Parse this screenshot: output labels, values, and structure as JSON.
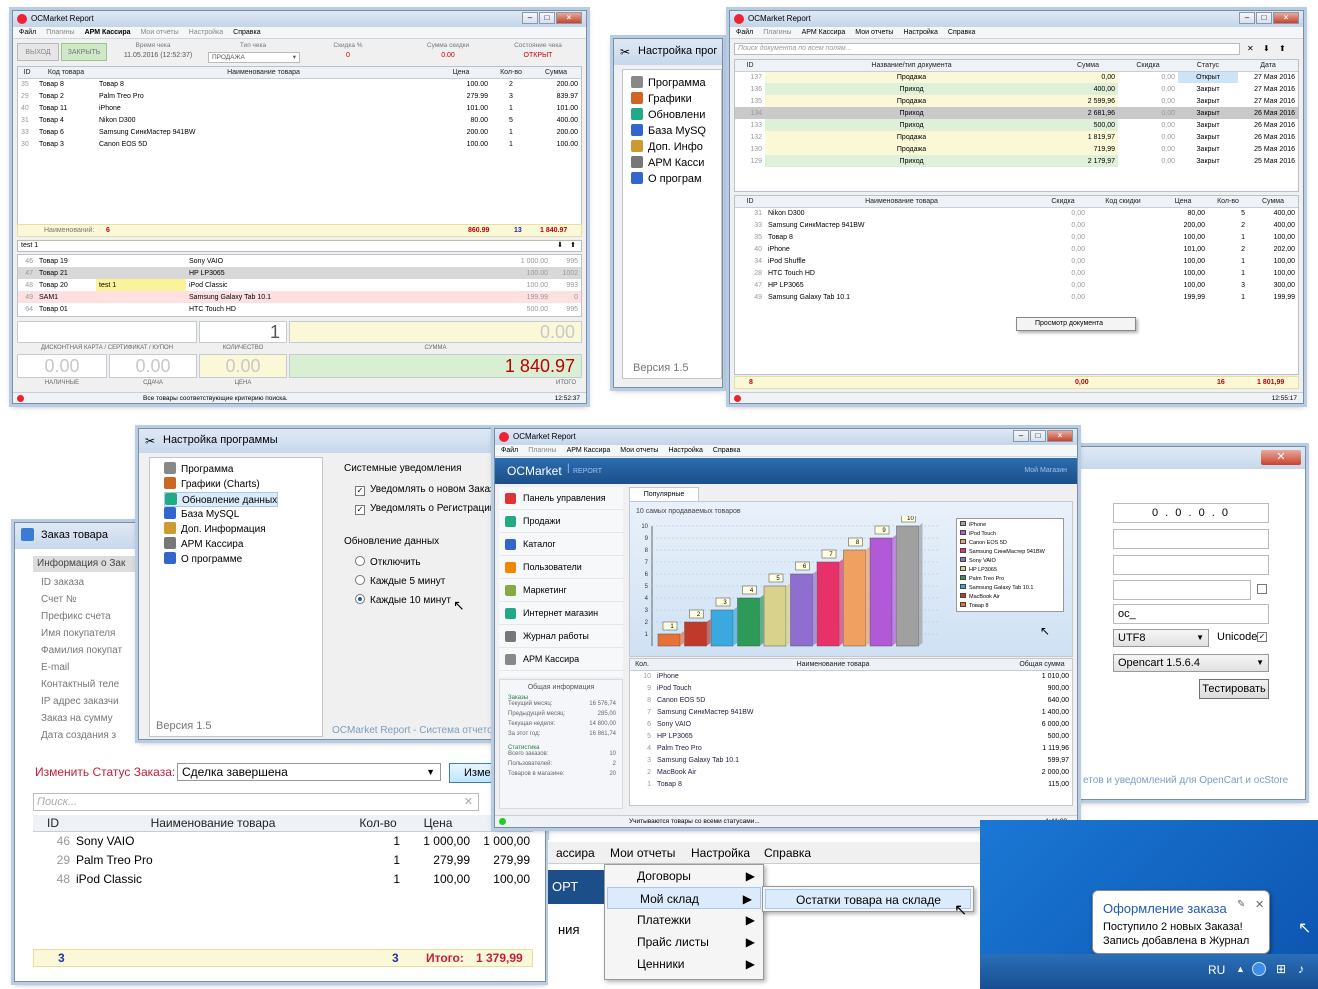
{
  "app_title": "OCMarket Report",
  "menubar": [
    "Файл",
    "Плагины",
    "АРМ Кассира",
    "Мои отчеты",
    "Настройка",
    "Справка"
  ],
  "cashier": {
    "btn_exit": "ВЫХОД",
    "btn_close": "ЗАКРЫТЬ",
    "lbl_time": "Время чека",
    "time_val": "11.05.2016 (12:52:37)",
    "lbl_type": "Тип чека",
    "type_val": "ПРОДАЖА",
    "lbl_disc": "Скидка %",
    "disc_val": "0",
    "lbl_disc_sum": "Сумма скидки",
    "disc_sum_val": "0.00",
    "lbl_state": "Состояние чека",
    "state_val": "ОТКРЫТ",
    "cols": [
      "ID",
      "Код товара",
      "Наименование товара",
      "Цена",
      "Кол-во",
      "Сумма"
    ],
    "rows": [
      [
        "35",
        "Товар 8",
        "Товар 8",
        "100.00",
        "2",
        "200.00"
      ],
      [
        "29",
        "Товар 2",
        "Palm Treo Pro",
        "279.99",
        "3",
        "839.97"
      ],
      [
        "40",
        "Товар 11",
        "iPhone",
        "101.00",
        "1",
        "101.00"
      ],
      [
        "31",
        "Товар 4",
        "Nikon D300",
        "80.00",
        "5",
        "400.00"
      ],
      [
        "33",
        "Товар 6",
        "Samsung СинкМастер 941BW",
        "200.00",
        "1",
        "200.00"
      ],
      [
        "30",
        "Товар 3",
        "Canon EOS 5D",
        "100.00",
        "1",
        "100.00"
      ]
    ],
    "foot_label": "Наименований:",
    "foot_count": "6",
    "foot_price": "860.99",
    "foot_qty": "13",
    "foot_sum": "1 840.97",
    "search_val": "test 1",
    "search_rows": [
      [
        "46",
        "Товар 19",
        "",
        "Sony VAIO",
        "1 000.00",
        "995"
      ],
      [
        "47",
        "Товар 21",
        "",
        "HP LP3065",
        "100.00",
        "1002"
      ],
      [
        "48",
        "Товар 20",
        "test 1",
        "iPod Classic",
        "100.00",
        "993"
      ],
      [
        "49",
        "SAM1",
        "",
        "Samsung Galaxy Tab 10.1",
        "199.99",
        "0"
      ],
      [
        "64",
        "Товар 01",
        "",
        "HTC Touch HD",
        "500.00",
        "995"
      ]
    ],
    "qty_val": "1",
    "sum_val": "0.00",
    "lbl_card": "ДИСКОНТНАЯ КАРТА / СЕРТИФИКАТ / КУПОН",
    "lbl_qty": "КОЛИЧЕСТВО",
    "lbl_sum": "СУММА",
    "cash_val": "0.00",
    "change_val": "0.00",
    "price_val": "0.00",
    "total_val": "1 840.97",
    "lbl_cash": "НАЛИЧНЫЕ",
    "lbl_change": "СДАЧА",
    "lbl_price": "ЦЕНА",
    "lbl_total": "ИТОГО",
    "status": "Все товары соответствующие критерию поиска.",
    "clock": "12:52:37"
  },
  "settings_small": {
    "title": "Настройка прог",
    "items": [
      "Программа",
      "Графики",
      "Обновлени",
      "База MySQ",
      "Доп. Инфо",
      "АРМ Касси",
      "О програм"
    ],
    "version": "Версия 1.5"
  },
  "docs": {
    "search_placeholder": "Поиск документа по всем полям...",
    "cols": [
      "ID",
      "Название/тип документа",
      "Сумма",
      "Скидка",
      "Статус",
      "Дата"
    ],
    "rows": [
      [
        "137",
        "Продажа",
        "0,00",
        "0,00",
        "Открыт",
        "27 Мая 2016"
      ],
      [
        "136",
        "Приход",
        "400,00",
        "0,00",
        "Закрыт",
        "27 Мая 2016"
      ],
      [
        "135",
        "Продажа",
        "2 599,96",
        "0,00",
        "Закрыт",
        "27 Мая 2016"
      ],
      [
        "134",
        "Приход",
        "2 681,96",
        "0,00",
        "Закрыт",
        "26 Мая 2016"
      ],
      [
        "133",
        "Приход",
        "500,00",
        "0,00",
        "Закрыт",
        "26 Мая 2016"
      ],
      [
        "132",
        "Продажа",
        "1 819,97",
        "0,00",
        "Закрыт",
        "26 Мая 2016"
      ],
      [
        "130",
        "Продажа",
        "719,99",
        "0,00",
        "Закрыт",
        "25 Мая 2016"
      ],
      [
        "129",
        "Приход",
        "2 179,97",
        "0,00",
        "Закрыт",
        "25 Мая 2016"
      ]
    ],
    "cols2": [
      "ID",
      "Наименование товара",
      "Скидка",
      "Код скидки",
      "Цена",
      "Кол-во",
      "Сумма"
    ],
    "rows2": [
      [
        "31",
        "Nikon D300",
        "0,00",
        "",
        "80,00",
        "5",
        "400,00"
      ],
      [
        "33",
        "Samsung СинкМастер 941BW",
        "0,00",
        "",
        "200,00",
        "2",
        "400,00"
      ],
      [
        "35",
        "Товар 8",
        "0,00",
        "",
        "100,00",
        "1",
        "100,00"
      ],
      [
        "40",
        "iPhone",
        "0,00",
        "",
        "101,00",
        "2",
        "202,00"
      ],
      [
        "34",
        "iPod Shuffle",
        "0,00",
        "",
        "100,00",
        "1",
        "100,00"
      ],
      [
        "28",
        "HTC Touch HD",
        "0,00",
        "",
        "100,00",
        "1",
        "100,00"
      ],
      [
        "47",
        "HP LP3065",
        "0,00",
        "",
        "100,00",
        "3",
        "300,00"
      ],
      [
        "49",
        "Samsung Galaxy Tab 10.1",
        "0,00",
        "",
        "199,99",
        "1",
        "199,99"
      ]
    ],
    "ctx_item": "Просмотр документа",
    "foot_count": "8",
    "foot_disc": "0,00",
    "foot_qty": "16",
    "foot_sum": "1 801,99",
    "clock": "12:55:17"
  },
  "settings_big": {
    "title": "Настройка программы",
    "items": [
      "Программа",
      "Графики (Charts)",
      "Обновление данных",
      "База MySQL",
      "Доп. Информация",
      "АРМ Кассира",
      "О программе"
    ],
    "version": "Версия 1.5",
    "grp1": "Системные уведомления",
    "chk1": "Уведомлять о новом Заказе",
    "chk2": "Уведомлять о Регистрации п",
    "grp2": "Обновление данных",
    "opt1": "Отключить",
    "opt2": "Каждые 5 минут",
    "opt3": "Каждые 10 минут",
    "footer": "OCMarket Report - Система отчетов и"
  },
  "order": {
    "title": "Заказ товара",
    "section": "Информация о Зак",
    "fields": [
      "ID заказа",
      "Счет №",
      "Префикс счета",
      "Имя покупателя",
      "Фамилия покупат",
      "E-mail",
      "Контактный теле",
      "IP адрес заказчи",
      "Заказ на сумму",
      "Дата создания з"
    ],
    "status_label": "Изменить Статус Заказа:",
    "status_val": "Сделка завершена",
    "change_btn": "Изме",
    "search_placeholder": "Поиск...",
    "cols": [
      "ID",
      "Наименование товара",
      "Кол-во",
      "Цена",
      "С"
    ],
    "rows": [
      [
        "46",
        "Sony VAIO",
        "1",
        "1 000,00",
        "1 000,00"
      ],
      [
        "29",
        "Palm Treo Pro",
        "1",
        "279,99",
        "279,99"
      ],
      [
        "48",
        "iPod Classic",
        "1",
        "100,00",
        "100,00"
      ]
    ],
    "foot_count": "3",
    "foot_qty": "3",
    "foot_label": "Итого:",
    "foot_sum": "1 379,99"
  },
  "dashboard": {
    "brand": "OCMarket",
    "brand_sub": "REPORT",
    "shop": "Мой Магазин",
    "nav": [
      "Панель управления",
      "Продажи",
      "Каталог",
      "Пользователи",
      "Маркетинг",
      "Интернет магазин",
      "Журнал работы",
      "АРМ Кассира"
    ],
    "tab": "Популярные",
    "chart_caption": "10 самых продаваемых товаров",
    "info_title": "Общая информация",
    "orders_title": "Заказы",
    "orders": [
      [
        "Текущий месяц:",
        "16 576,74"
      ],
      [
        "Предыдущий месяц:",
        "285,00"
      ],
      [
        "Текущая неделя:",
        "14 800,00"
      ],
      [
        "За этот год:",
        "16 861,74"
      ]
    ],
    "stats_title": "Статистика",
    "stats": [
      [
        "Всего заказов:",
        "10"
      ],
      [
        "Пользователей:",
        "2"
      ],
      [
        "Товаров в магазине:",
        "20"
      ]
    ],
    "cols": [
      "Кол.",
      "Наименование товара",
      "Общая сумма"
    ],
    "rows": [
      [
        "10",
        "iPhone",
        "1 010,00"
      ],
      [
        "9",
        "iPod Touch",
        "900,00"
      ],
      [
        "8",
        "Canon EOS 5D",
        "640,00"
      ],
      [
        "7",
        "Samsung СинкМастер 941BW",
        "1 400,00"
      ],
      [
        "6",
        "Sony VAIO",
        "6 000,00"
      ],
      [
        "5",
        "HP LP3065",
        "500,00"
      ],
      [
        "4",
        "Palm Treo Pro",
        "1 119,96"
      ],
      [
        "3",
        "Samsung Galaxy Tab 10.1",
        "599,97"
      ],
      [
        "2",
        "MacBook Air",
        "2 000,00"
      ],
      [
        "1",
        "Товар 8",
        "115,00"
      ]
    ],
    "status": "Учитываются товары со всеми статусами...",
    "clock": "1:41:08"
  },
  "chart_data": {
    "type": "bar",
    "categories": [
      "Товар 8",
      "MacBook Air",
      "Samsung Galaxy Tab 10.1",
      "Palm Treo Pro",
      "HP LP3065",
      "Sony VAIO",
      "Samsung СинкМастер 941BW",
      "Canon EOS 5D",
      "iPod Touch",
      "iPhone"
    ],
    "values": [
      1,
      2,
      3,
      4,
      5,
      6,
      7,
      8,
      9,
      10
    ],
    "colors": [
      "#e8703a",
      "#c0392b",
      "#3aa9e0",
      "#2e9a58",
      "#d8d28c",
      "#8e6fd0",
      "#e8316a",
      "#f0a060",
      "#b05ad8",
      "#a0a0a0"
    ],
    "legend": [
      "iPhone",
      "iPod Touch",
      "Canon EOS 5D",
      "Samsung СинкМастер 941BW",
      "Sony VAIO",
      "HP LP3065",
      "Palm Treo Pro",
      "Samsung Galaxy Tab 10.1",
      "MacBook Air",
      "Товар 8"
    ],
    "legend_colors": [
      "#a0a0a0",
      "#b05ad8",
      "#f0a060",
      "#e8316a",
      "#8e6fd0",
      "#d8d28c",
      "#2e9a58",
      "#3aa9e0",
      "#c0392b",
      "#e8703a"
    ],
    "yticks": [
      1,
      2,
      3,
      4,
      5,
      6,
      7,
      8,
      9,
      10
    ],
    "ylim": [
      0,
      10
    ],
    "legend_position": "right"
  },
  "connect": {
    "ip": "0 . 0 . 0 . 0",
    "prefix": "oc_",
    "charset": "UTF8",
    "unicode": "Unicode",
    "version": "Opencart 1.5.6.4",
    "test_btn": "Тестировать",
    "footer": "етов и уведомлений для OpenCart и ocStore"
  },
  "reports_menu": {
    "bar": [
      "ассира",
      "Мои отчеты",
      "Настройка",
      "Справка"
    ],
    "left_frag1": "ОРТ",
    "left_frag2": "ния",
    "items": [
      "Договоры",
      "Мой склад",
      "Платежки",
      "Прайс листы",
      "Ценники"
    ],
    "sub": "Остатки товара на складе"
  },
  "taskbar": {
    "notif_title": "Оформление заказа",
    "notif_line1": "Поступило 2 новых Заказа!",
    "notif_line2": "Запись добавлена в Журнал",
    "lang": "RU"
  }
}
